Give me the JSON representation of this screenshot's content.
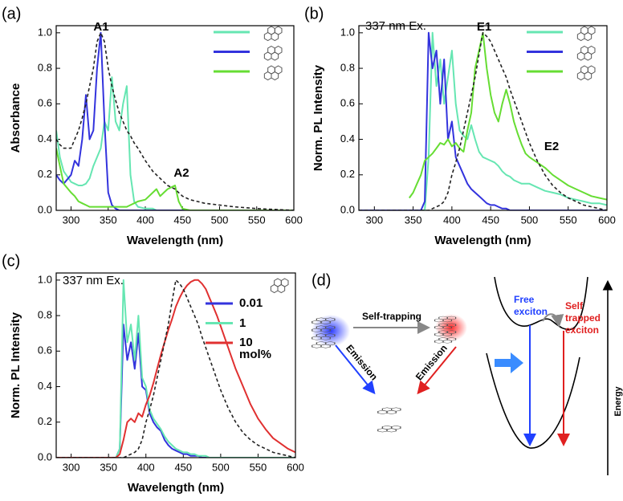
{
  "chart_data": [
    {
      "type": "line",
      "panel_label": "(a)",
      "xlabel": "Wavelength (nm)",
      "ylabel": "Absorbance",
      "annotations": [
        "A1",
        "A2"
      ],
      "xlim": [
        280,
        600
      ],
      "xticks": [
        300,
        350,
        400,
        450,
        500,
        550,
        600
      ],
      "ylim": [
        0,
        1.04
      ],
      "yticks": [
        {
          "value": 0,
          "label": "0.0"
        },
        0.2,
        0.4,
        0.6,
        0.8,
        {
          "value": 1,
          "label": "1.0"
        }
      ],
      "x": [
        280,
        285,
        290,
        300,
        305,
        310,
        315,
        320,
        325,
        330,
        335,
        340,
        345,
        350,
        355,
        360,
        365,
        370,
        375,
        380,
        385,
        390,
        400,
        410,
        415,
        420,
        425,
        430,
        435,
        440,
        445,
        450,
        460,
        470,
        480,
        500,
        520,
        550,
        600
      ],
      "series": [
        {
          "color": "#66e6b2",
          "values": [
            0.45,
            0.3,
            0.22,
            0.16,
            0.15,
            0.14,
            0.14,
            0.15,
            0.18,
            0.25,
            0.3,
            0.35,
            0.5,
            0.45,
            0.75,
            0.5,
            0.45,
            0.6,
            0.7,
            0.2,
            0.05,
            0.02,
            0.01,
            0.01,
            0,
            0,
            0,
            0,
            0,
            0,
            0,
            0,
            0,
            0,
            0,
            0,
            0,
            0,
            0
          ]
        },
        {
          "color": "#3333dd",
          "values": [
            0.2,
            0.17,
            0.15,
            0.2,
            0.28,
            0.25,
            0.4,
            0.65,
            0.4,
            0.45,
            0.8,
            1.0,
            0.5,
            0.1,
            0.03,
            0.01,
            0,
            0,
            0,
            0,
            0,
            0,
            0,
            0,
            0,
            0,
            0,
            0,
            0,
            0,
            0,
            0,
            0,
            0,
            0,
            0,
            0,
            0,
            0
          ]
        },
        {
          "color": "#66dd33",
          "values": [
            0.35,
            0.25,
            0.15,
            0.1,
            0.08,
            0.05,
            0.04,
            0.03,
            0.02,
            0.02,
            0.02,
            0.02,
            0.02,
            0.02,
            0.02,
            0.02,
            0.02,
            0.02,
            0.02,
            0.03,
            0.04,
            0.05,
            0.06,
            0.1,
            0.12,
            0.08,
            0.1,
            0.12,
            0.13,
            0.14,
            0.05,
            0.01,
            0,
            0,
            0,
            0,
            0,
            0,
            0
          ]
        },
        {
          "color": "#222222",
          "dash": true,
          "values": [
            0.4,
            0.37,
            0.35,
            0.35,
            0.4,
            0.45,
            0.52,
            0.6,
            0.7,
            0.8,
            0.95,
            1.0,
            0.95,
            0.8,
            0.7,
            0.62,
            0.55,
            0.5,
            0.45,
            0.42,
            0.38,
            0.35,
            0.28,
            0.22,
            0.2,
            0.18,
            0.16,
            0.14,
            0.13,
            0.12,
            0.1,
            0.08,
            0.06,
            0.05,
            0.04,
            0.03,
            0.02,
            0.01,
            0
          ]
        }
      ]
    },
    {
      "type": "line",
      "panel_label": "(b)",
      "xlabel": "Wavelength (nm)",
      "ylabel": "Norm. PL Intensity",
      "annotations": [
        "337 nm Ex.",
        "E1",
        "E2"
      ],
      "xlim": [
        280,
        600
      ],
      "xticks": [
        300,
        350,
        400,
        450,
        500,
        550,
        600
      ],
      "ylim": [
        0,
        1.04
      ],
      "yticks": [
        {
          "value": 0,
          "label": "0.0"
        },
        0.2,
        0.4,
        0.6,
        0.8,
        {
          "value": 1,
          "label": "1.0"
        }
      ],
      "x": [
        280,
        300,
        320,
        340,
        345,
        350,
        355,
        360,
        365,
        370,
        375,
        380,
        385,
        390,
        395,
        400,
        405,
        410,
        415,
        420,
        425,
        430,
        435,
        440,
        445,
        450,
        455,
        460,
        465,
        470,
        475,
        480,
        485,
        490,
        495,
        500,
        510,
        520,
        530,
        540,
        550,
        560,
        570,
        580,
        590,
        600
      ],
      "series": [
        {
          "color": "#66e6b2",
          "values": [
            0,
            0,
            0,
            0,
            0,
            0,
            0,
            0,
            0,
            0.3,
            1.0,
            0.7,
            0.85,
            0.6,
            0.75,
            0.9,
            0.6,
            0.45,
            0.42,
            0.4,
            0.48,
            0.4,
            0.33,
            0.3,
            0.29,
            0.28,
            0.27,
            0.25,
            0.22,
            0.2,
            0.19,
            0.17,
            0.16,
            0.15,
            0.15,
            0.15,
            0.13,
            0.11,
            0.1,
            0.09,
            0.07,
            0.06,
            0.05,
            0.04,
            0.04,
            0.03
          ]
        },
        {
          "color": "#3333dd",
          "values": [
            0,
            0,
            0,
            0,
            0,
            0,
            0,
            0,
            0.05,
            1.0,
            0.8,
            0.9,
            0.6,
            0.85,
            0.4,
            0.5,
            0.3,
            0.25,
            0.2,
            0.15,
            0.12,
            0.1,
            0.08,
            0.06,
            0.04,
            0.03,
            0.03,
            0.02,
            0.01,
            0.01,
            0,
            0,
            0,
            0,
            0,
            0,
            0,
            0,
            0,
            0,
            0,
            0,
            0,
            0,
            0,
            0
          ]
        },
        {
          "color": "#66dd33",
          "values": [
            null,
            null,
            null,
            null,
            0.07,
            0.1,
            0.15,
            0.2,
            0.28,
            0.3,
            0.32,
            0.35,
            0.38,
            0.37,
            0.4,
            0.36,
            0.38,
            0.35,
            0.33,
            0.45,
            0.55,
            0.8,
            0.9,
            1.0,
            0.8,
            0.65,
            0.55,
            0.5,
            0.6,
            0.68,
            0.6,
            0.5,
            0.43,
            0.37,
            0.32,
            0.3,
            0.27,
            0.24,
            0.2,
            0.17,
            0.14,
            0.12,
            0.1,
            0.08,
            0.07,
            0.06
          ]
        },
        {
          "color": "#222222",
          "dash": true,
          "values": [
            0,
            0,
            0,
            0,
            0,
            0,
            0,
            0,
            0,
            0,
            0.01,
            0.02,
            0.03,
            0.05,
            0.1,
            0.2,
            0.27,
            0.35,
            0.45,
            0.55,
            0.65,
            0.75,
            0.88,
            1.0,
            0.98,
            0.95,
            0.9,
            0.85,
            0.8,
            0.75,
            0.68,
            0.62,
            0.56,
            0.5,
            0.44,
            0.38,
            0.28,
            0.2,
            0.14,
            0.1,
            0.07,
            0.05,
            0.03,
            0.02,
            0.01,
            0
          ]
        }
      ]
    },
    {
      "type": "line",
      "panel_label": "(c)",
      "xlabel": "Wavelength (nm)",
      "ylabel": "Norm. PL Intensity",
      "annotations": [
        "337 nm Ex."
      ],
      "xlim": [
        280,
        600
      ],
      "xticks": [
        300,
        350,
        400,
        450,
        500,
        550,
        600
      ],
      "ylim": [
        0,
        1.04
      ],
      "yticks": [
        {
          "value": 0,
          "label": "0.0"
        },
        0.2,
        0.4,
        0.6,
        0.8,
        {
          "value": 1,
          "label": "1.0"
        }
      ],
      "x": [
        280,
        300,
        320,
        340,
        345,
        350,
        355,
        360,
        365,
        370,
        375,
        380,
        385,
        390,
        395,
        400,
        405,
        410,
        415,
        420,
        425,
        430,
        435,
        440,
        445,
        450,
        455,
        460,
        465,
        470,
        475,
        480,
        485,
        490,
        495,
        500,
        510,
        520,
        530,
        540,
        550,
        560,
        570,
        580,
        590,
        600
      ],
      "series": [
        {
          "name": "0.01",
          "color": "#3333dd",
          "values": [
            0,
            0,
            0,
            0,
            0,
            0,
            0,
            0,
            0.05,
            0.75,
            0.55,
            0.65,
            0.5,
            0.7,
            0.4,
            0.38,
            0.25,
            0.2,
            0.17,
            0.15,
            0.1,
            0.07,
            0.05,
            0.04,
            0.03,
            0.02,
            0.02,
            0.01,
            0.01,
            0.01,
            0,
            0,
            0,
            0,
            0,
            0,
            0,
            0,
            0,
            0,
            0,
            0,
            0,
            0,
            0,
            0
          ]
        },
        {
          "name": "1",
          "color": "#66e6b2",
          "values": [
            0,
            0,
            0,
            0,
            0,
            0,
            0,
            0,
            0.05,
            1.0,
            0.65,
            0.75,
            0.55,
            0.8,
            0.45,
            0.4,
            0.27,
            0.22,
            0.19,
            0.16,
            0.12,
            0.09,
            0.07,
            0.05,
            0.04,
            0.03,
            0.03,
            0.02,
            0.02,
            0.01,
            0.01,
            0.01,
            0,
            0,
            0,
            0,
            0,
            0,
            0,
            0,
            0,
            0,
            0,
            0,
            0,
            0
          ]
        },
        {
          "name": "10 mol%",
          "color": "#e03030",
          "values": [
            0,
            0,
            0,
            0,
            0,
            0,
            0,
            0,
            0.02,
            0.1,
            0.2,
            0.22,
            0.2,
            0.25,
            0.23,
            0.3,
            0.35,
            0.42,
            0.5,
            0.58,
            0.65,
            0.72,
            0.78,
            0.85,
            0.9,
            0.94,
            0.97,
            0.99,
            1.0,
            1.0,
            0.98,
            0.95,
            0.9,
            0.85,
            0.8,
            0.74,
            0.62,
            0.5,
            0.4,
            0.3,
            0.22,
            0.16,
            0.11,
            0.08,
            0.05,
            0.03
          ]
        },
        {
          "color": "#222222",
          "dash": true,
          "values": [
            0,
            0,
            0,
            0,
            0,
            0,
            0,
            0,
            0,
            0,
            0.01,
            0.02,
            0.03,
            0.05,
            0.1,
            0.2,
            0.27,
            0.35,
            0.45,
            0.55,
            0.65,
            0.75,
            0.88,
            1.0,
            0.98,
            0.95,
            0.9,
            0.85,
            0.8,
            0.75,
            0.68,
            0.62,
            0.56,
            0.5,
            0.44,
            0.38,
            0.28,
            0.2,
            0.14,
            0.1,
            0.07,
            0.05,
            0.03,
            0.02,
            0.01,
            0
          ]
        }
      ]
    }
  ],
  "diagram": {
    "panel_label": "(d)",
    "process": "Self-trapping",
    "emission_left": "Emission",
    "emission_right": "Emission",
    "free": "Free exciton",
    "self_trapped": "Self trapped exciton",
    "axis": "Energy"
  }
}
